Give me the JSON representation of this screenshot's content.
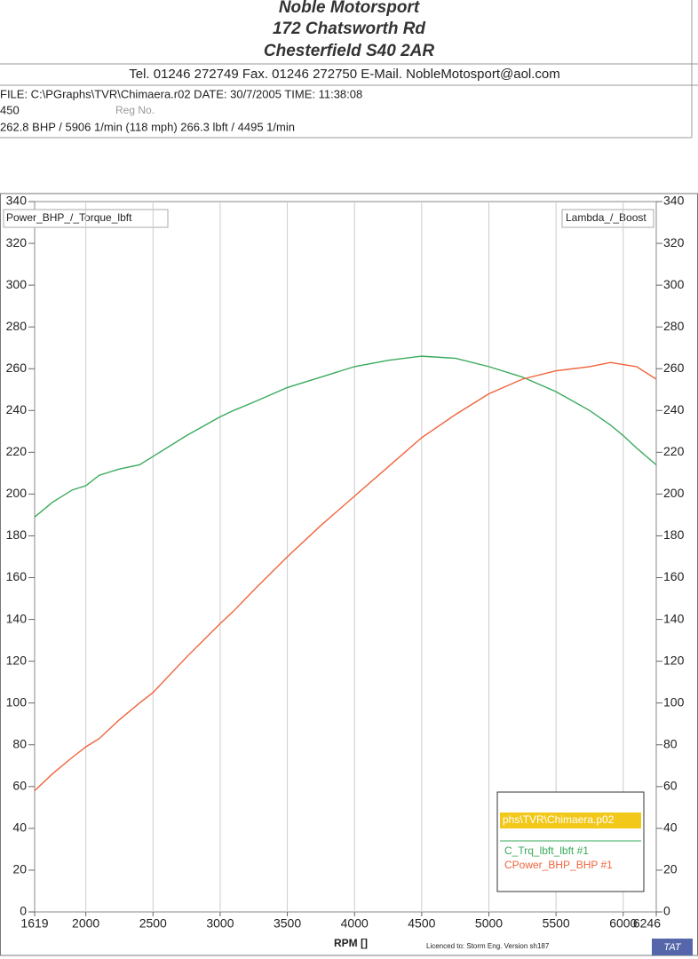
{
  "header": {
    "company": "Noble Motorsport",
    "street": "172 Chatsworth Rd",
    "city": "Chesterfield S40 2AR",
    "contact": "Tel. 01246 272749    Fax. 01246 272750   E-Mail. NobleMotosport@aol.com",
    "file_line": "FILE: C:\\PGraphs\\TVR\\Chimaera.r02  DATE: 30/7/2005  TIME: 11:38:08",
    "code": "450",
    "reg": "Reg No.",
    "summary": "262.8 BHP / 5906 1/min (118 mph)    266.3 lbft / 4495 1/min"
  },
  "chart_data": {
    "type": "line",
    "ylabel": "Power_BHP_/_Torque_lbft",
    "y2label": "Lambda_/_Boost",
    "xlabel": "RPM  []",
    "legend_title": "phs\\TVR\\Chimaera.p02",
    "legend": "bottom-right",
    "x": [
      1619,
      1750,
      1900,
      2000,
      2100,
      2250,
      2400,
      2500,
      2750,
      3000,
      3100,
      3250,
      3500,
      3750,
      4000,
      4250,
      4500,
      4750,
      5000,
      5250,
      5500,
      5750,
      5906,
      6000,
      6100,
      6246
    ],
    "series": [
      {
        "name": "C_Trq_lbft_lbft #1",
        "color": "#3aaa5c",
        "values": [
          189,
          196,
          202,
          204,
          209,
          212,
          214,
          218,
          228,
          237,
          240,
          244,
          251,
          256,
          261,
          264,
          266,
          265,
          261,
          256,
          249,
          240,
          233,
          228,
          222,
          214
        ]
      },
      {
        "name": "CPower_BHP_BHP #1",
        "color": "#f0643c",
        "values": [
          58,
          66,
          74,
          79,
          83,
          92,
          100,
          105,
          122,
          138,
          144,
          154,
          170,
          185,
          199,
          213,
          227,
          238,
          248,
          255,
          259,
          261,
          263,
          262,
          261,
          255
        ]
      }
    ],
    "xlim": [
      1619,
      6246
    ],
    "xticks": [
      1619,
      2000,
      2500,
      3000,
      3500,
      4000,
      4500,
      5000,
      5500,
      6000,
      6246
    ],
    "ylim": [
      0,
      340
    ],
    "yticks": [
      0,
      20,
      40,
      60,
      80,
      100,
      120,
      140,
      160,
      180,
      200,
      220,
      240,
      260,
      280,
      300,
      320,
      340
    ],
    "y2lim": [
      0,
      340
    ],
    "y2ticks": [
      0,
      20,
      40,
      60,
      80,
      100,
      120,
      140,
      160,
      180,
      200,
      220,
      240,
      260,
      280,
      300,
      320,
      340
    ],
    "grid": "x",
    "footer": "Licenced to: Storm Eng.  Version sh187",
    "badge": "TAT"
  }
}
